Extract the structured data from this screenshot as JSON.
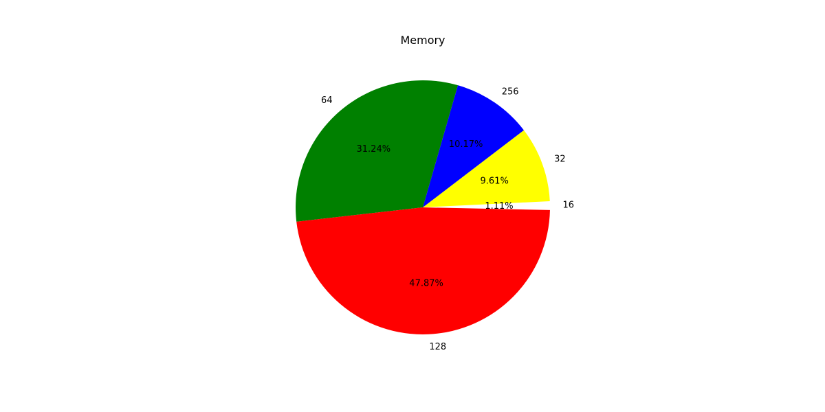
{
  "chart_data": {
    "type": "pie",
    "title": "Memory",
    "slices": [
      {
        "label": "16",
        "percent": 1.11,
        "percent_label": "1.11%",
        "color": "#ffffff"
      },
      {
        "label": "32",
        "percent": 9.61,
        "percent_label": "9.61%",
        "color": "#ffff00"
      },
      {
        "label": "256",
        "percent": 10.17,
        "percent_label": "10.17%",
        "color": "#0000ff"
      },
      {
        "label": "64",
        "percent": 31.24,
        "percent_label": "31.24%",
        "color": "#008000"
      },
      {
        "label": "128",
        "percent": 47.87,
        "percent_label": "47.87%",
        "color": "#ff0000"
      }
    ]
  }
}
